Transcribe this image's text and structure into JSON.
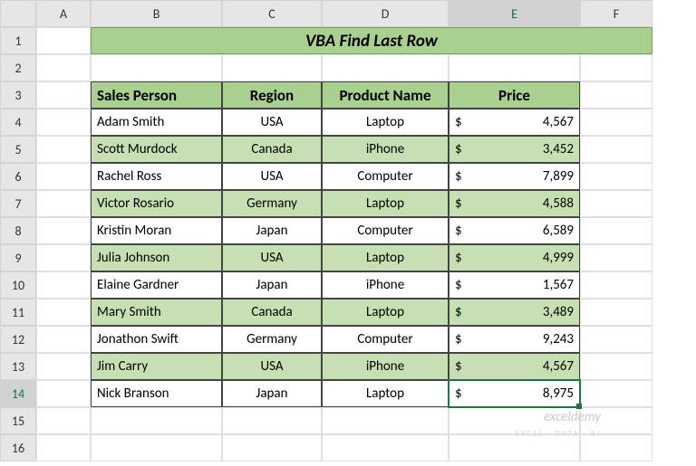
{
  "colHeaders": [
    "A",
    "B",
    "C",
    "D",
    "E",
    "F"
  ],
  "rowHeaders": [
    "1",
    "2",
    "3",
    "4",
    "5",
    "6",
    "7",
    "8",
    "9",
    "10",
    "11",
    "12",
    "13",
    "14",
    "15",
    "16"
  ],
  "activeCol": 4,
  "activeRow": 13,
  "title": "VBA Find Last Row",
  "headers": {
    "person": "Sales Person",
    "region": "Region",
    "product": "Product Name",
    "price": "Price"
  },
  "rows": [
    {
      "person": "Adam Smith",
      "region": "USA",
      "product": "Laptop",
      "cur": "$",
      "price": "4,567",
      "band": false
    },
    {
      "person": "Scott Murdock",
      "region": "Canada",
      "product": "iPhone",
      "cur": "$",
      "price": "3,452",
      "band": true
    },
    {
      "person": "Rachel Ross",
      "region": "USA",
      "product": "Computer",
      "cur": "$",
      "price": "7,899",
      "band": false
    },
    {
      "person": "Victor Rosario",
      "region": "Germany",
      "product": "Laptop",
      "cur": "$",
      "price": "4,588",
      "band": true
    },
    {
      "person": "Kristin Moran",
      "region": "Japan",
      "product": "Computer",
      "cur": "$",
      "price": "6,589",
      "band": false
    },
    {
      "person": "Julia Johnson",
      "region": "USA",
      "product": "Laptop",
      "cur": "$",
      "price": "4,999",
      "band": true
    },
    {
      "person": "Elaine Gardner",
      "region": "Japan",
      "product": "iPhone",
      "cur": "$",
      "price": "1,567",
      "band": false
    },
    {
      "person": "Mary Smith",
      "region": "Canada",
      "product": "Laptop",
      "cur": "$",
      "price": "3,489",
      "band": true
    },
    {
      "person": "Jonathon Swift",
      "region": "Germany",
      "product": "Computer",
      "cur": "$",
      "price": "9,243",
      "band": false
    },
    {
      "person": "Jim Carry",
      "region": "USA",
      "product": "iPhone",
      "cur": "$",
      "price": "4,567",
      "band": true
    },
    {
      "person": "Nick Branson",
      "region": "Japan",
      "product": "Laptop",
      "cur": "$",
      "price": "8,975",
      "band": false
    }
  ],
  "watermark": "exceldemy",
  "watermark2": "EXCEL · DATA · BI",
  "colors": {
    "headerFill": "#a9d08e",
    "bandFill": "#c6e0b4",
    "selection": "#217346"
  }
}
